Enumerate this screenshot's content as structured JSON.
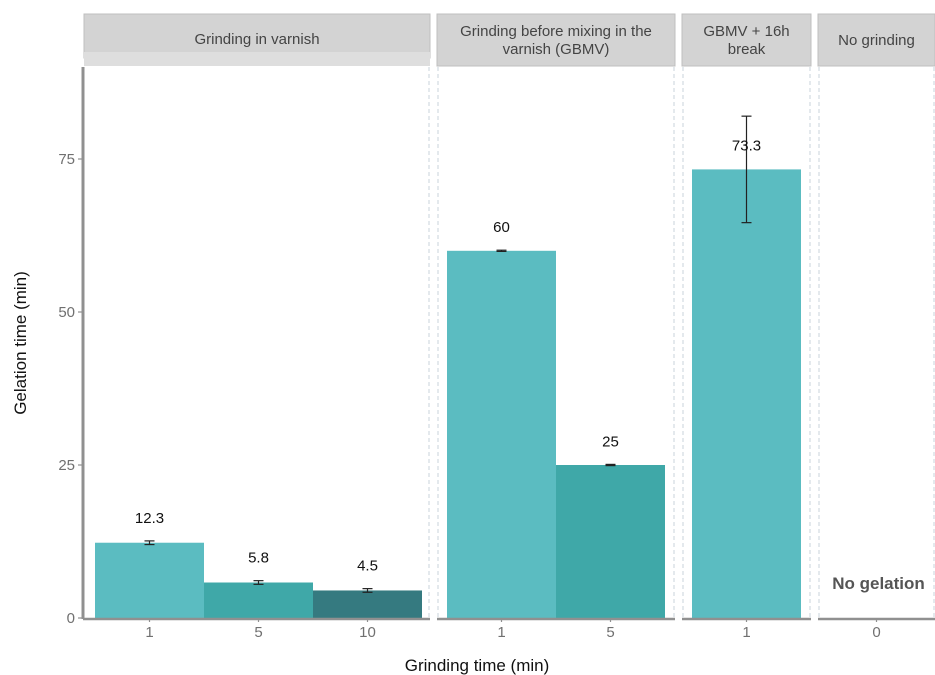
{
  "chart_data": {
    "type": "bar",
    "xlabel": "Grinding time (min)",
    "ylabel": "Gelation time (min)",
    "ylim": [
      0,
      90
    ],
    "yticks": [
      0,
      25,
      50,
      75
    ],
    "grid": false,
    "panels": [
      {
        "name": "Grinding in varnish",
        "categories": [
          "1",
          "5",
          "10"
        ],
        "values": [
          12.3,
          5.8,
          4.5
        ],
        "errors": [
          0.3,
          0.3,
          0.3
        ],
        "labels": [
          "12.3",
          "5.8",
          "4.5"
        ],
        "colors": [
          "#5bbcc1",
          "#3fa8a8",
          "#357a80"
        ]
      },
      {
        "name": "Grinding before mixing in the varnish (GBMV)",
        "categories": [
          "1",
          "5"
        ],
        "values": [
          60,
          25
        ],
        "errors": [
          0.1,
          0.1
        ],
        "labels": [
          "60",
          "25"
        ],
        "colors": [
          "#5bbcc1",
          "#3fa8a8"
        ]
      },
      {
        "name": "GBMV + 16h break",
        "categories": [
          "1"
        ],
        "values": [
          73.3
        ],
        "errors": [
          8.7
        ],
        "labels": [
          "73.3"
        ],
        "colors": [
          "#5bbcc1"
        ]
      },
      {
        "name": "No grinding",
        "categories": [
          "0"
        ],
        "values": [
          0
        ],
        "errors": [
          0
        ],
        "labels": [
          ""
        ],
        "colors": [
          "#5bbcc1"
        ],
        "note": "No gelation"
      }
    ]
  }
}
